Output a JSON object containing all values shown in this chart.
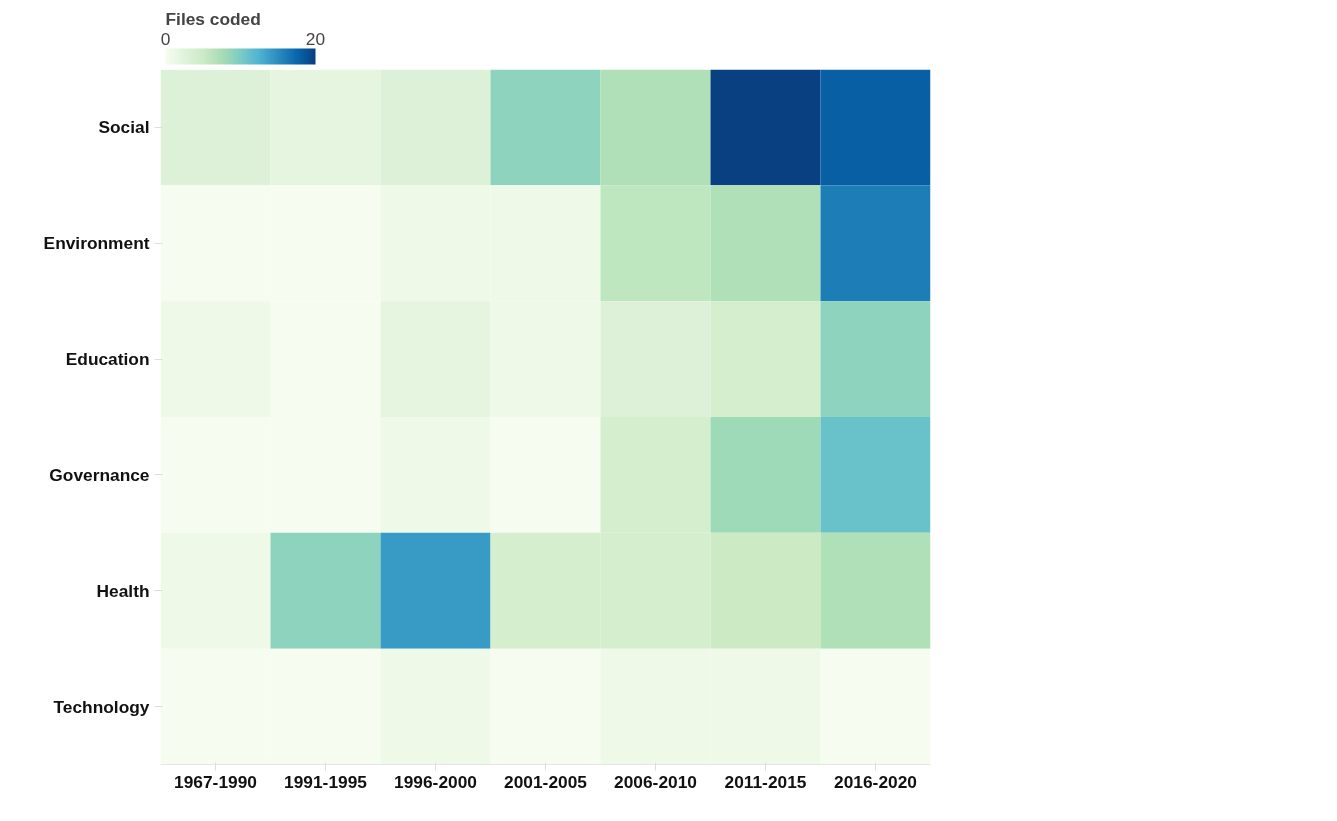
{
  "chart_data": {
    "type": "heatmap",
    "clabel": "Files coded",
    "categories": [
      "1967-1990",
      "1991-1995",
      "1996-2000",
      "2001-2005",
      "2006-2010",
      "2011-2015",
      "2016-2020"
    ],
    "y_categories": [
      "Social",
      "Environment",
      "Education",
      "Governance",
      "Health",
      "Technology"
    ],
    "cells": [
      [
        3,
        2,
        3,
        9,
        7,
        20,
        18
      ],
      [
        0,
        0,
        1,
        1,
        6,
        7,
        16
      ],
      [
        1,
        0,
        2,
        1,
        3,
        4,
        9
      ],
      [
        0,
        0,
        1,
        0,
        4,
        8,
        11
      ],
      [
        1,
        9,
        14,
        4,
        4,
        5,
        7
      ],
      [
        0,
        0,
        1,
        0,
        1,
        1,
        0
      ]
    ],
    "clim": [
      0,
      20
    ],
    "cticks": [
      0,
      20
    ],
    "grid": false
  }
}
